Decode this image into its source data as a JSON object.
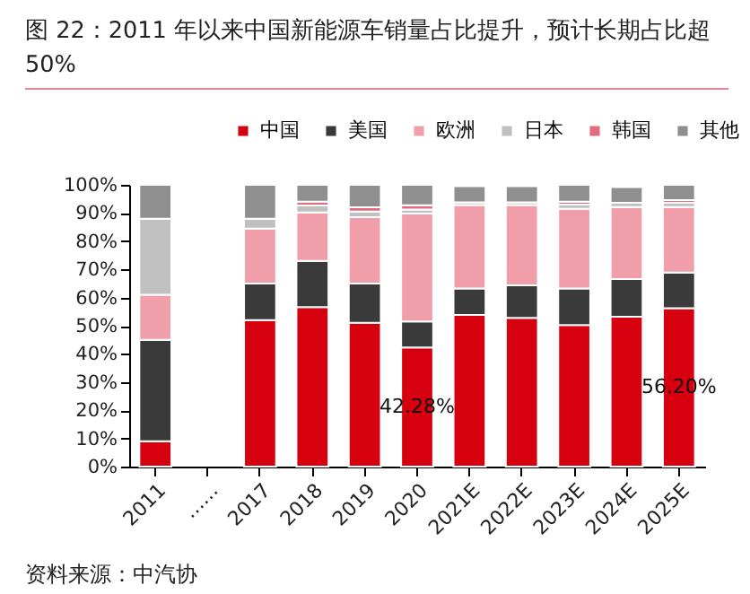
{
  "chart_data": {
    "type": "bar",
    "title": "图 22：2011 年以来中国新能源车销量占比提升，预计长期占比超50%",
    "stacked": true,
    "legend": "top",
    "grid": false,
    "categories": [
      "2011",
      "……",
      "2017",
      "2018",
      "2019",
      "2020",
      "2021E",
      "2022E",
      "2023E",
      "2024E",
      "2025E"
    ],
    "ylim": [
      0,
      100
    ],
    "yticks": [
      {
        "value": 0,
        "label": "0%"
      },
      {
        "value": 10,
        "label": "10%"
      },
      {
        "value": 20,
        "label": "20%"
      },
      {
        "value": 30,
        "label": "30%"
      },
      {
        "value": 40,
        "label": "40%"
      },
      {
        "value": 50,
        "label": "50%"
      },
      {
        "value": 60,
        "label": "60%"
      },
      {
        "value": 70,
        "label": "70%"
      },
      {
        "value": 80,
        "label": "80%"
      },
      {
        "value": 90,
        "label": "90%"
      },
      {
        "value": 100,
        "label": "100%"
      }
    ],
    "series": [
      {
        "name": "中国",
        "color": "#d7000f",
        "values": [
          9,
          null,
          52,
          56.6,
          51,
          42.28,
          53.8,
          52.8,
          50.2,
          53.2,
          56.2
        ],
        "value_labels": [
          null,
          null,
          null,
          null,
          null,
          "42.28%",
          null,
          null,
          null,
          null,
          "56.20%"
        ]
      },
      {
        "name": "美国",
        "color": "#3a3a3a",
        "values": [
          36,
          null,
          13,
          16.4,
          14,
          9.2,
          9.4,
          11.5,
          13,
          13.4,
          12.7
        ]
      },
      {
        "name": "欧洲",
        "color": "#f09ea9",
        "values": [
          16,
          null,
          19.5,
          17.2,
          23.5,
          38.3,
          29.6,
          28.5,
          28.3,
          25.5,
          23.2
        ]
      },
      {
        "name": "日本",
        "color": "#c0c0c0",
        "values": [
          27,
          null,
          3.5,
          2.5,
          2,
          1.5,
          1,
          1,
          1.5,
          1.5,
          1.5
        ]
      },
      {
        "name": "韩国",
        "color": "#e26b7e",
        "values": [
          0,
          null,
          0,
          1.3,
          1.5,
          1.5,
          null,
          null,
          1,
          null,
          1
        ]
      },
      {
        "name": "其他",
        "color": "#8f8f8f",
        "values": [
          12,
          null,
          12,
          6,
          8,
          7.2,
          5.7,
          5.7,
          6,
          5.6,
          5.4
        ]
      }
    ],
    "annotations": [
      "资料来源：中汽协"
    ]
  }
}
